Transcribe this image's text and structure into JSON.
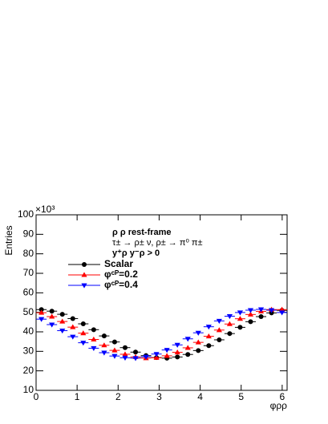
{
  "chart_data": {
    "type": "scatter",
    "ylabel": "Entries",
    "xlabel": "φρρ",
    "y_multiplier": "×10³",
    "annotations": [
      "ρ ρ  rest-frame",
      "τ± → ρ± ν, ρ± → π⁰ π±",
      "y⁺ρ y⁻ρ > 0"
    ],
    "x": [
      0.13,
      0.385,
      0.64,
      0.895,
      1.15,
      1.405,
      1.66,
      1.915,
      2.17,
      2.425,
      2.68,
      2.935,
      3.19,
      3.445,
      3.7,
      3.955,
      4.21,
      4.465,
      4.72,
      4.975,
      5.23,
      5.485,
      5.74,
      5.995
    ],
    "series": [
      {
        "name": "Scalar",
        "color": "#000000",
        "marker": "circle",
        "values": [
          51.4,
          50.6,
          49.0,
          46.8,
          44.1,
          41.1,
          37.9,
          34.8,
          31.9,
          29.6,
          27.8,
          26.8,
          26.5,
          27.1,
          28.4,
          30.4,
          32.9,
          35.9,
          39.1,
          42.3,
          45.2,
          47.8,
          49.7,
          51.0
        ]
      },
      {
        "name": "φᶜᴾ=0.2",
        "color": "#ff0000",
        "marker": "triangle-up",
        "values": [
          49.8,
          47.8,
          45.3,
          42.4,
          39.3,
          36.1,
          33.1,
          30.5,
          28.5,
          27.1,
          26.5,
          26.7,
          27.7,
          29.5,
          31.8,
          34.6,
          37.7,
          40.9,
          44.0,
          46.7,
          48.9,
          50.5,
          51.4,
          51.4
        ]
      },
      {
        "name": "φᶜᴾ=0.4",
        "color": "#0000ff",
        "marker": "triangle-down",
        "values": [
          46.5,
          43.7,
          40.6,
          37.5,
          34.4,
          31.6,
          29.3,
          27.6,
          26.7,
          26.5,
          27.2,
          28.6,
          30.7,
          33.3,
          36.4,
          39.5,
          42.6,
          45.6,
          48.0,
          49.9,
          51.1,
          51.5,
          51.1,
          49.9
        ]
      }
    ],
    "xlim": [
      0,
      6.12
    ],
    "ylim": [
      10,
      100
    ],
    "xticks": [
      0,
      1,
      2,
      3,
      4,
      5,
      6
    ],
    "yticks": [
      10,
      20,
      30,
      40,
      50,
      60,
      70,
      80,
      90,
      100
    ],
    "bin_halfwidth": 0.127
  }
}
